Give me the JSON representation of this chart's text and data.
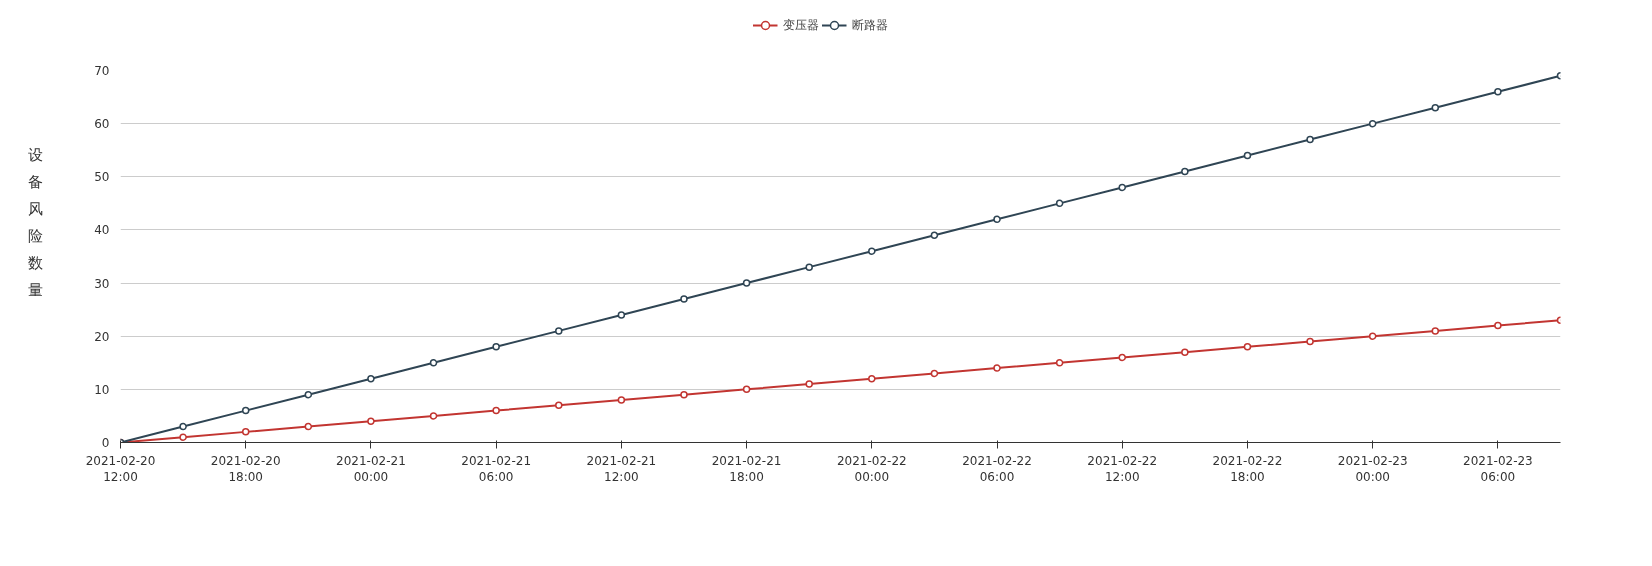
{
  "chart_data": {
    "type": "line",
    "ylabel": "设备风险数量",
    "x": [
      "2021-02-20T12:00",
      "2021-02-20T15:00",
      "2021-02-20T18:00",
      "2021-02-20T21:00",
      "2021-02-21T00:00",
      "2021-02-21T03:00",
      "2021-02-21T06:00",
      "2021-02-21T09:00",
      "2021-02-21T12:00",
      "2021-02-21T15:00",
      "2021-02-21T18:00",
      "2021-02-21T21:00",
      "2021-02-22T00:00",
      "2021-02-22T03:00",
      "2021-02-22T06:00",
      "2021-02-22T09:00",
      "2021-02-22T12:00",
      "2021-02-22T15:00",
      "2021-02-22T18:00",
      "2021-02-22T21:00",
      "2021-02-23T00:00",
      "2021-02-23T03:00",
      "2021-02-23T06:00",
      "2021-02-23T09:00"
    ],
    "series": [
      {
        "name": "变压器",
        "color": "#c23531",
        "values": [
          0,
          1,
          2,
          3,
          4,
          5,
          6,
          7,
          8,
          9,
          10,
          11,
          12,
          13,
          14,
          15,
          16,
          17,
          18,
          19,
          20,
          21,
          22,
          23
        ]
      },
      {
        "name": "断路器",
        "color": "#2f4554",
        "values": [
          0,
          3,
          6,
          9,
          12,
          15,
          18,
          21,
          24,
          27,
          30,
          33,
          36,
          39,
          42,
          45,
          48,
          51,
          54,
          57,
          60,
          63,
          66,
          69
        ]
      }
    ],
    "xlim": [
      "2021-02-20T12:00",
      "2021-02-23T09:00"
    ],
    "xticks": [
      {
        "value": "2021-02-20T12:00",
        "label": "2021-02-20\n12:00"
      },
      {
        "value": "2021-02-20T18:00",
        "label": "2021-02-20\n18:00"
      },
      {
        "value": "2021-02-21T00:00",
        "label": "2021-02-21\n00:00"
      },
      {
        "value": "2021-02-21T06:00",
        "label": "2021-02-21\n06:00"
      },
      {
        "value": "2021-02-21T12:00",
        "label": "2021-02-21\n12:00"
      },
      {
        "value": "2021-02-21T18:00",
        "label": "2021-02-21\n18:00"
      },
      {
        "value": "2021-02-22T00:00",
        "label": "2021-02-22\n00:00"
      },
      {
        "value": "2021-02-22T06:00",
        "label": "2021-02-22\n06:00"
      },
      {
        "value": "2021-02-22T12:00",
        "label": "2021-02-22\n12:00"
      },
      {
        "value": "2021-02-22T18:00",
        "label": "2021-02-22\n18:00"
      },
      {
        "value": "2021-02-23T00:00",
        "label": "2021-02-23\n00:00"
      },
      {
        "value": "2021-02-23T06:00",
        "label": "2021-02-23\n06:00"
      }
    ],
    "ylim": [
      0,
      70
    ],
    "yticks": [
      0,
      10,
      20,
      30,
      40,
      50,
      60,
      70
    ],
    "grid": "y",
    "legend": "top",
    "marker": "circle",
    "line_style": "solid"
  }
}
